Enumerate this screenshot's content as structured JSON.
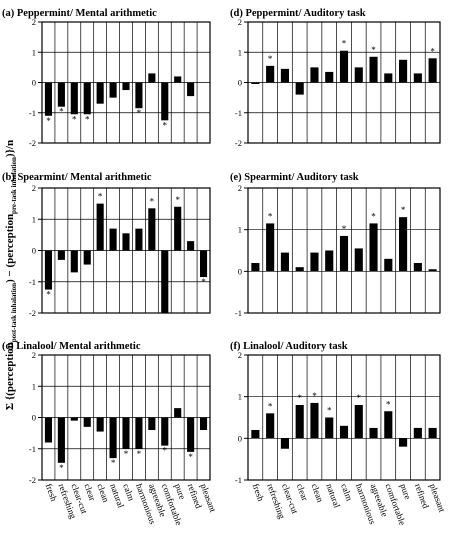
{
  "figure": {
    "ylabel_parts": [
      "Σ {(perception",
      "post-task inhalation",
      ") − (perception",
      "pre-task inhalation",
      ")}/n"
    ],
    "categories": [
      "fresh",
      "refreshing",
      "clear-cut",
      "clear",
      "clean",
      "natural",
      "calm",
      "harmonious",
      "agreeable",
      "comfortable",
      "pure",
      "refined",
      "pleasant"
    ]
  },
  "chart_data": [
    {
      "id": "a",
      "type": "bar",
      "title": "(a) Peppermint/ Mental arithmetic",
      "ylim": [
        -2,
        2
      ],
      "yticks": [
        -2,
        -1,
        0,
        1,
        2
      ],
      "values": [
        -1.1,
        -0.8,
        -1.05,
        -1.05,
        -0.7,
        -0.5,
        -0.25,
        -0.85,
        0.3,
        -1.25,
        0.2,
        -0.45,
        null
      ],
      "significant": [
        0,
        1,
        2,
        3,
        7,
        9
      ]
    },
    {
      "id": "d",
      "type": "bar",
      "title": "(d) Peppermint/ Auditory task",
      "ylim": [
        -2,
        2
      ],
      "yticks": [
        -2,
        -1,
        0,
        1,
        2
      ],
      "values": [
        -0.05,
        0.55,
        0.45,
        -0.4,
        0.5,
        0.35,
        1.05,
        0.5,
        0.85,
        0.3,
        0.75,
        0.3,
        0.8
      ],
      "significant": [
        1,
        6,
        8,
        12
      ]
    },
    {
      "id": "b",
      "type": "bar",
      "title": "(b) Spearmint/ Mental arithmetic",
      "ylim": [
        -2,
        2
      ],
      "yticks": [
        -2,
        -1,
        0,
        1,
        2
      ],
      "values": [
        -1.25,
        -0.3,
        -0.7,
        -0.45,
        1.5,
        0.7,
        0.55,
        0.7,
        1.35,
        -2.0,
        1.4,
        0.3,
        -0.85
      ],
      "significant": [
        0,
        4,
        8,
        10,
        12
      ]
    },
    {
      "id": "e",
      "type": "bar",
      "title": "(e) Spearmint/ Auditory task",
      "ylim": [
        -1,
        2
      ],
      "yticks": [
        -1,
        0,
        1,
        2
      ],
      "values": [
        0.2,
        1.15,
        0.45,
        0.1,
        0.45,
        0.5,
        0.85,
        0.55,
        1.15,
        0.3,
        1.3,
        0.2,
        0.05
      ],
      "significant": [
        1,
        6,
        8,
        10
      ]
    },
    {
      "id": "c",
      "type": "bar",
      "title": "(c) Linalool/ Mental arithmetic",
      "ylim": [
        -2,
        2
      ],
      "yticks": [
        -2,
        -1,
        0,
        1,
        2
      ],
      "values": [
        -0.8,
        -1.45,
        -0.1,
        -0.3,
        -0.45,
        -1.3,
        -1.0,
        -1.0,
        -0.4,
        -0.9,
        0.3,
        -1.1,
        -0.4
      ],
      "significant": [
        1,
        5,
        6,
        7,
        9,
        11
      ]
    },
    {
      "id": "f",
      "type": "bar",
      "title": "(f) Linalool/ Auditory task",
      "ylim": [
        -1,
        2
      ],
      "yticks": [
        -1,
        0,
        1,
        2
      ],
      "values": [
        0.2,
        0.6,
        -0.25,
        0.8,
        0.85,
        0.5,
        0.3,
        0.8,
        0.25,
        0.65,
        -0.2,
        0.25,
        0.25
      ],
      "significant": [
        1,
        3,
        4,
        5,
        7,
        9
      ]
    }
  ]
}
